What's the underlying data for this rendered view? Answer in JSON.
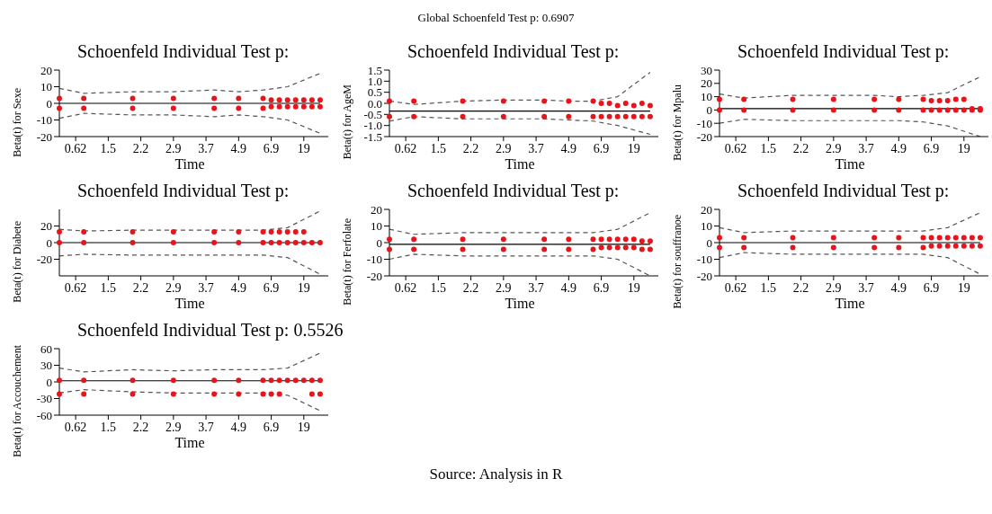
{
  "chart_data": [
    {
      "type": "scatter",
      "title": "Schoenfeld Individual Test p:",
      "xlabel": "Time",
      "ylabel": "Beta(t) for Sexe",
      "annotations": [
        "Global Schoenfeld Test p: 0.6907"
      ],
      "categories": [
        null,
        null,
        "0.62",
        null,
        null,
        null,
        "1.5",
        null,
        null,
        null,
        "2.2",
        null,
        null,
        null,
        "2.9",
        null,
        null,
        null,
        "3.7",
        null,
        null,
        null,
        "4.9",
        null,
        null,
        null,
        "6.9",
        null,
        null,
        null,
        "19",
        null,
        null,
        null
      ],
      "ylim": [
        -20,
        20
      ],
      "yticks": [
        -20,
        -10,
        0,
        10,
        20
      ],
      "series": [
        {
          "color": "#e8141c",
          "marker": "circle",
          "values": [
            -3,
            null,
            null,
            -3,
            null,
            null,
            null,
            null,
            null,
            -3,
            null,
            null,
            null,
            null,
            -3,
            null,
            null,
            null,
            null,
            -3,
            null,
            null,
            -3,
            null,
            null,
            -3,
            -2,
            -2,
            -2,
            -2,
            -2,
            -2,
            -2,
            null
          ]
        },
        {
          "color": "#e8141c",
          "marker": "circle",
          "values": [
            3,
            null,
            null,
            3,
            null,
            null,
            null,
            null,
            null,
            3,
            null,
            null,
            null,
            null,
            3,
            null,
            null,
            null,
            null,
            3,
            null,
            null,
            3,
            null,
            null,
            3,
            2,
            2,
            2,
            2,
            2,
            2,
            2,
            null
          ]
        },
        {
          "type": "line",
          "color": "#000000",
          "line_style": "solid",
          "values": [
            0,
            null,
            null,
            0,
            null,
            null,
            null,
            null,
            null,
            0,
            null,
            null,
            null,
            null,
            0,
            null,
            null,
            null,
            null,
            0,
            null,
            null,
            0,
            null,
            null,
            0,
            null,
            null,
            0,
            null,
            null,
            null,
            0,
            null
          ]
        },
        {
          "type": "line",
          "color": "#555555",
          "line_style": "dashed",
          "values": [
            9,
            null,
            null,
            6,
            null,
            null,
            null,
            null,
            null,
            7,
            null,
            null,
            null,
            null,
            7,
            null,
            null,
            null,
            null,
            8,
            null,
            null,
            7,
            null,
            null,
            8,
            null,
            null,
            10,
            null,
            null,
            null,
            18,
            null
          ]
        },
        {
          "type": "line",
          "color": "#555555",
          "line_style": "dashed",
          "values": [
            -9,
            null,
            null,
            -6,
            null,
            null,
            null,
            null,
            null,
            -7,
            null,
            null,
            null,
            null,
            -7,
            null,
            null,
            null,
            null,
            -8,
            null,
            null,
            -7,
            null,
            null,
            -8,
            null,
            null,
            -10,
            null,
            null,
            null,
            -18,
            null
          ]
        }
      ]
    },
    {
      "type": "scatter",
      "title": "Schoenfeld Individual Test p:",
      "xlabel": "Time",
      "ylabel": "Beta(t) for AgeM",
      "categories": [
        null,
        null,
        "0.62",
        null,
        null,
        null,
        "1.5",
        null,
        null,
        null,
        "2.2",
        null,
        null,
        null,
        "2.9",
        null,
        null,
        null,
        "3.7",
        null,
        null,
        null,
        "4.9",
        null,
        null,
        null,
        "6.9",
        null,
        null,
        null,
        "19",
        null,
        null,
        null
      ],
      "ylim": [
        -1.5,
        1.5
      ],
      "yticks": [
        {
          "value": -1.5,
          "label": "-1.5"
        },
        {
          "value": -1,
          "label": "-1.0"
        },
        {
          "value": -0.5,
          "label": "-0.5"
        },
        {
          "value": 0,
          "label": "0.0"
        },
        {
          "value": 0.5,
          "label": "0.5"
        },
        {
          "value": 1,
          "label": "1.0"
        },
        {
          "value": 1.5,
          "label": "1.5"
        }
      ],
      "series": [
        {
          "color": "#e8141c",
          "marker": "circle",
          "values": [
            -0.6,
            null,
            null,
            -0.6,
            null,
            null,
            null,
            null,
            null,
            -0.6,
            null,
            null,
            null,
            null,
            -0.6,
            null,
            null,
            null,
            null,
            -0.6,
            null,
            null,
            -0.6,
            null,
            null,
            -0.6,
            -0.6,
            -0.6,
            -0.6,
            -0.6,
            -0.6,
            -0.6,
            -0.6,
            null
          ]
        },
        {
          "color": "#e8141c",
          "marker": "circle",
          "values": [
            0.1,
            null,
            null,
            0.1,
            null,
            null,
            null,
            null,
            null,
            0.1,
            null,
            null,
            null,
            null,
            0.1,
            null,
            null,
            null,
            null,
            0.1,
            null,
            null,
            0.1,
            null,
            null,
            0.1,
            0,
            0,
            -0.1,
            0,
            -0.1,
            0,
            -0.1,
            null
          ]
        },
        {
          "type": "line",
          "color": "#000000",
          "line_style": "solid",
          "values": [
            -0.35,
            null,
            null,
            -0.35,
            null,
            null,
            null,
            null,
            null,
            -0.35,
            null,
            null,
            null,
            null,
            -0.35,
            null,
            null,
            null,
            null,
            -0.35,
            null,
            null,
            -0.35,
            null,
            null,
            -0.35,
            null,
            null,
            -0.35,
            null,
            null,
            null,
            -0.35,
            null
          ]
        },
        {
          "type": "line",
          "color": "#555555",
          "line_style": "dashed",
          "values": [
            0.1,
            null,
            null,
            -0.05,
            null,
            null,
            null,
            null,
            null,
            0.1,
            null,
            null,
            null,
            null,
            0.15,
            null,
            null,
            null,
            null,
            0.15,
            null,
            null,
            0.1,
            null,
            null,
            0.1,
            null,
            null,
            0.3,
            null,
            null,
            null,
            1.4,
            null
          ]
        },
        {
          "type": "line",
          "color": "#555555",
          "line_style": "dashed",
          "values": [
            -0.8,
            null,
            null,
            -0.6,
            null,
            null,
            null,
            null,
            null,
            -0.7,
            null,
            null,
            null,
            null,
            -0.7,
            null,
            null,
            null,
            null,
            -0.7,
            null,
            null,
            -0.75,
            null,
            null,
            -0.8,
            null,
            null,
            -1,
            null,
            null,
            null,
            -1.4,
            null
          ]
        }
      ]
    },
    {
      "type": "scatter",
      "title": "Schoenfeld Individual Test p:",
      "xlabel": "Time",
      "ylabel": "Beta(t) for Mpalu",
      "categories": [
        null,
        null,
        "0.62",
        null,
        null,
        null,
        "1.5",
        null,
        null,
        null,
        "2.2",
        null,
        null,
        null,
        "2.9",
        null,
        null,
        null,
        "3.7",
        null,
        null,
        null,
        "4.9",
        null,
        null,
        null,
        "6.9",
        null,
        null,
        null,
        "19",
        null,
        null,
        null
      ],
      "ylim": [
        -20,
        30
      ],
      "yticks": [
        -20,
        -10,
        0,
        10,
        20,
        30
      ],
      "series": [
        {
          "color": "#e8141c",
          "marker": "circle",
          "values": [
            0,
            null,
            null,
            0,
            null,
            null,
            null,
            null,
            null,
            0,
            null,
            null,
            null,
            null,
            0,
            null,
            null,
            null,
            null,
            0,
            null,
            null,
            0,
            null,
            null,
            0,
            0,
            0,
            0,
            0,
            0,
            0,
            0,
            null
          ]
        },
        {
          "color": "#e8141c",
          "marker": "circle",
          "values": [
            8,
            null,
            null,
            8,
            null,
            null,
            null,
            null,
            null,
            8,
            null,
            null,
            null,
            null,
            8,
            null,
            null,
            null,
            null,
            8,
            null,
            null,
            8,
            null,
            null,
            8,
            7,
            7,
            7,
            8,
            8,
            1,
            1,
            null
          ]
        },
        {
          "type": "line",
          "color": "#000000",
          "line_style": "solid",
          "values": [
            1,
            null,
            null,
            1,
            null,
            null,
            null,
            null,
            null,
            1,
            null,
            null,
            null,
            null,
            1,
            null,
            null,
            null,
            null,
            1,
            null,
            null,
            1,
            null,
            null,
            1,
            null,
            null,
            1,
            null,
            null,
            null,
            1,
            null
          ]
        },
        {
          "type": "line",
          "color": "#555555",
          "line_style": "dashed",
          "values": [
            12,
            null,
            null,
            9,
            null,
            null,
            null,
            null,
            null,
            11,
            null,
            null,
            null,
            null,
            11,
            null,
            null,
            null,
            null,
            11,
            null,
            null,
            10,
            null,
            null,
            11,
            null,
            null,
            13,
            null,
            null,
            null,
            25,
            null
          ]
        },
        {
          "type": "line",
          "color": "#555555",
          "line_style": "dashed",
          "values": [
            -10,
            null,
            null,
            -7,
            null,
            null,
            null,
            null,
            null,
            -8,
            null,
            null,
            null,
            null,
            -8,
            null,
            null,
            null,
            null,
            -8,
            null,
            null,
            -8,
            null,
            null,
            -9,
            null,
            null,
            -12,
            null,
            null,
            null,
            -20,
            null
          ]
        }
      ]
    },
    {
      "type": "scatter",
      "title": "Schoenfeld Individual Test p:",
      "xlabel": "Time",
      "ylabel": "Beta(t) for Diabete",
      "categories": [
        null,
        null,
        "0.62",
        null,
        null,
        null,
        "1.5",
        null,
        null,
        null,
        "2.2",
        null,
        null,
        null,
        "2.9",
        null,
        null,
        null,
        "3.7",
        null,
        null,
        null,
        "4.9",
        null,
        null,
        null,
        "6.9",
        null,
        null,
        null,
        "19",
        null,
        null,
        null
      ],
      "ylim": [
        -40,
        40
      ],
      "yticks": [
        -20,
        0,
        20
      ],
      "series": [
        {
          "color": "#e8141c",
          "marker": "circle",
          "values": [
            0,
            null,
            null,
            0,
            null,
            null,
            null,
            null,
            null,
            0,
            null,
            null,
            null,
            null,
            0,
            null,
            null,
            null,
            null,
            0,
            null,
            null,
            0,
            null,
            null,
            0,
            0,
            0,
            0,
            0,
            0,
            0,
            0,
            null
          ]
        },
        {
          "color": "#e8141c",
          "marker": "circle",
          "values": [
            13,
            null,
            null,
            13,
            null,
            null,
            null,
            null,
            null,
            13,
            null,
            null,
            null,
            null,
            13,
            null,
            null,
            null,
            null,
            13,
            null,
            null,
            13,
            null,
            null,
            13,
            13,
            13,
            13,
            13,
            13,
            null,
            null,
            null
          ]
        },
        {
          "type": "line",
          "color": "#000000",
          "line_style": "solid",
          "values": [
            0,
            null,
            null,
            0,
            null,
            null,
            null,
            null,
            null,
            0,
            null,
            null,
            null,
            null,
            0,
            null,
            null,
            null,
            null,
            0,
            null,
            null,
            0,
            null,
            null,
            0,
            null,
            null,
            0,
            null,
            null,
            null,
            0,
            null
          ]
        },
        {
          "type": "line",
          "color": "#555555",
          "line_style": "dashed",
          "values": [
            16,
            null,
            null,
            14,
            null,
            null,
            null,
            null,
            null,
            15,
            null,
            null,
            null,
            null,
            15,
            null,
            null,
            null,
            null,
            15,
            null,
            null,
            15,
            null,
            null,
            15,
            null,
            null,
            18,
            null,
            null,
            null,
            38,
            null
          ]
        },
        {
          "type": "line",
          "color": "#555555",
          "line_style": "dashed",
          "values": [
            -16,
            null,
            null,
            -14,
            null,
            null,
            null,
            null,
            null,
            -15,
            null,
            null,
            null,
            null,
            -15,
            null,
            null,
            null,
            null,
            -15,
            null,
            null,
            -15,
            null,
            null,
            -15,
            null,
            null,
            -18,
            null,
            null,
            null,
            -38,
            null
          ]
        }
      ]
    },
    {
      "type": "scatter",
      "title": "Schoenfeld Individual Test p:",
      "xlabel": "Time",
      "ylabel": "Beta(t) for Ferfolate",
      "categories": [
        null,
        null,
        "0.62",
        null,
        null,
        null,
        "1.5",
        null,
        null,
        null,
        "2.2",
        null,
        null,
        null,
        "2.9",
        null,
        null,
        null,
        "3.7",
        null,
        null,
        null,
        "4.9",
        null,
        null,
        null,
        "6.9",
        null,
        null,
        null,
        "19",
        null,
        null,
        null
      ],
      "ylim": [
        -20,
        20
      ],
      "yticks": [
        -20,
        -10,
        0,
        10,
        20
      ],
      "series": [
        {
          "color": "#e8141c",
          "marker": "circle",
          "values": [
            -4,
            null,
            null,
            -4,
            null,
            null,
            null,
            null,
            null,
            -4,
            null,
            null,
            null,
            null,
            -4,
            null,
            null,
            null,
            null,
            -4,
            null,
            null,
            -4,
            null,
            null,
            -4,
            -3,
            -3,
            -3,
            -3,
            -3,
            -4,
            -4,
            null
          ]
        },
        {
          "color": "#e8141c",
          "marker": "circle",
          "values": [
            2,
            null,
            null,
            2,
            null,
            null,
            null,
            null,
            null,
            2,
            null,
            null,
            null,
            null,
            2,
            null,
            null,
            null,
            null,
            2,
            null,
            null,
            2,
            null,
            null,
            2,
            2,
            2,
            2,
            2,
            2,
            1,
            1,
            null
          ]
        },
        {
          "type": "line",
          "color": "#000000",
          "line_style": "solid",
          "values": [
            -1,
            null,
            null,
            -1,
            null,
            null,
            null,
            null,
            null,
            -1,
            null,
            null,
            null,
            null,
            -1,
            null,
            null,
            null,
            null,
            -1,
            null,
            null,
            -1,
            null,
            null,
            -1,
            null,
            null,
            -1,
            null,
            null,
            null,
            -1,
            null
          ]
        },
        {
          "type": "line",
          "color": "#555555",
          "line_style": "dashed",
          "values": [
            8,
            null,
            null,
            5,
            null,
            null,
            null,
            null,
            null,
            6,
            null,
            null,
            null,
            null,
            6,
            null,
            null,
            null,
            null,
            6,
            null,
            null,
            6,
            null,
            null,
            6,
            null,
            null,
            8,
            null,
            null,
            null,
            18,
            null
          ]
        },
        {
          "type": "line",
          "color": "#555555",
          "line_style": "dashed",
          "values": [
            -10,
            null,
            null,
            -7,
            null,
            null,
            null,
            null,
            null,
            -8,
            null,
            null,
            null,
            null,
            -8,
            null,
            null,
            null,
            null,
            -8,
            null,
            null,
            -8,
            null,
            null,
            -8,
            null,
            null,
            -10,
            null,
            null,
            null,
            -20,
            null
          ]
        }
      ]
    },
    {
      "type": "scatter",
      "title": "Schoenfeld Individual Test p:",
      "xlabel": "Time",
      "ylabel": "Beta(t) for souffranoe",
      "categories": [
        null,
        null,
        "0.62",
        null,
        null,
        null,
        "1.5",
        null,
        null,
        null,
        "2.2",
        null,
        null,
        null,
        "2.9",
        null,
        null,
        null,
        "3.7",
        null,
        null,
        null,
        "4.9",
        null,
        null,
        null,
        "6.9",
        null,
        null,
        null,
        "19",
        null,
        null,
        null
      ],
      "ylim": [
        -20,
        20
      ],
      "yticks": [
        -20,
        -10,
        0,
        10,
        20
      ],
      "series": [
        {
          "color": "#e8141c",
          "marker": "circle",
          "values": [
            -3,
            null,
            null,
            -3,
            null,
            null,
            null,
            null,
            null,
            -3,
            null,
            null,
            null,
            null,
            -3,
            null,
            null,
            null,
            null,
            -3,
            null,
            null,
            -3,
            null,
            null,
            -3,
            -2,
            -2,
            -2,
            -2,
            -2,
            -2,
            -2,
            null
          ]
        },
        {
          "color": "#e8141c",
          "marker": "circle",
          "values": [
            3,
            null,
            null,
            3,
            null,
            null,
            null,
            null,
            null,
            3,
            null,
            null,
            null,
            null,
            3,
            null,
            null,
            null,
            null,
            3,
            null,
            null,
            3,
            null,
            null,
            3,
            3,
            3,
            3,
            3,
            3,
            3,
            3,
            null
          ]
        },
        {
          "type": "line",
          "color": "#000000",
          "line_style": "solid",
          "values": [
            0,
            null,
            null,
            0,
            null,
            null,
            null,
            null,
            null,
            0,
            null,
            null,
            null,
            null,
            0,
            null,
            null,
            null,
            null,
            0,
            null,
            null,
            0,
            null,
            null,
            0,
            null,
            null,
            0,
            null,
            null,
            null,
            0,
            null
          ]
        },
        {
          "type": "line",
          "color": "#555555",
          "line_style": "dashed",
          "values": [
            9,
            null,
            null,
            6,
            null,
            null,
            null,
            null,
            null,
            7,
            null,
            null,
            null,
            null,
            7,
            null,
            null,
            null,
            null,
            7,
            null,
            null,
            7,
            null,
            null,
            7,
            null,
            null,
            9,
            null,
            null,
            null,
            18,
            null
          ]
        },
        {
          "type": "line",
          "color": "#555555",
          "line_style": "dashed",
          "values": [
            -9,
            null,
            null,
            -6,
            null,
            null,
            null,
            null,
            null,
            -7,
            null,
            null,
            null,
            null,
            -7,
            null,
            null,
            null,
            null,
            -7,
            null,
            null,
            -7,
            null,
            null,
            -7,
            null,
            null,
            -9,
            null,
            null,
            null,
            -19,
            null
          ]
        }
      ]
    },
    {
      "type": "scatter",
      "title": "Schoenfeld Individual Test p: 0.5526",
      "xlabel": "Time",
      "ylabel": "Beta(t) for Accouchement",
      "annotations": [
        "Source: Analysis in R"
      ],
      "categories": [
        null,
        null,
        "0.62",
        null,
        null,
        null,
        "1.5",
        null,
        null,
        null,
        "2.2",
        null,
        null,
        null,
        "2.9",
        null,
        null,
        null,
        "3.7",
        null,
        null,
        null,
        "4.9",
        null,
        null,
        null,
        "6.9",
        null,
        null,
        null,
        "19",
        null,
        null,
        null
      ],
      "ylim": [
        -60,
        60
      ],
      "yticks": [
        -60,
        -30,
        0,
        30,
        60
      ],
      "series": [
        {
          "color": "#e8141c",
          "marker": "circle",
          "values": [
            -22,
            null,
            null,
            -22,
            null,
            null,
            null,
            null,
            null,
            -22,
            null,
            null,
            null,
            null,
            -22,
            null,
            null,
            null,
            null,
            -22,
            null,
            null,
            -22,
            null,
            null,
            -22,
            -22,
            -22,
            null,
            null,
            null,
            -22,
            -22,
            null
          ]
        },
        {
          "color": "#e8141c",
          "marker": "circle",
          "values": [
            3,
            null,
            null,
            3,
            null,
            null,
            null,
            null,
            null,
            3,
            null,
            null,
            null,
            null,
            3,
            null,
            null,
            null,
            null,
            3,
            null,
            null,
            3,
            null,
            null,
            3,
            3,
            3,
            3,
            3,
            3,
            3,
            3,
            null
          ]
        },
        {
          "type": "line",
          "color": "#000000",
          "line_style": "solid",
          "values": [
            2,
            null,
            null,
            2,
            null,
            null,
            null,
            null,
            null,
            2,
            null,
            null,
            null,
            null,
            2,
            null,
            null,
            null,
            null,
            2,
            null,
            null,
            2,
            null,
            null,
            2,
            null,
            null,
            2,
            null,
            null,
            null,
            2,
            null
          ]
        },
        {
          "type": "line",
          "color": "#555555",
          "line_style": "dashed",
          "values": [
            25,
            null,
            null,
            18,
            null,
            null,
            null,
            null,
            null,
            22,
            null,
            null,
            null,
            null,
            20,
            null,
            null,
            null,
            null,
            22,
            null,
            null,
            22,
            null,
            null,
            22,
            null,
            null,
            25,
            null,
            null,
            null,
            52,
            null
          ]
        },
        {
          "type": "line",
          "color": "#555555",
          "line_style": "dashed",
          "values": [
            -20,
            null,
            null,
            -14,
            null,
            null,
            null,
            null,
            null,
            -18,
            null,
            null,
            null,
            null,
            -20,
            null,
            null,
            null,
            null,
            -20,
            null,
            null,
            -20,
            null,
            null,
            -20,
            null,
            null,
            -24,
            null,
            null,
            null,
            -52,
            null
          ]
        }
      ]
    }
  ]
}
